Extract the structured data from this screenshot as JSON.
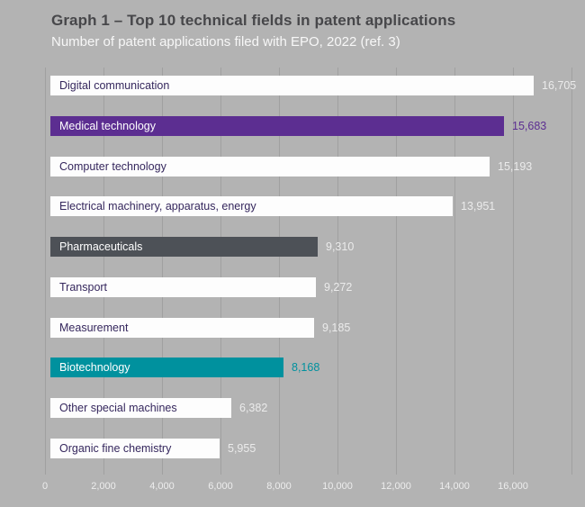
{
  "chart_data": {
    "type": "bar",
    "orientation": "horizontal",
    "title": "Graph 1 – Top 10 technical fields in patent applications",
    "subtitle": "Number of patent applications filed with EPO, 2022 (ref. 3)",
    "categories": [
      "Digital communication",
      "Medical technology",
      "Computer technology",
      "Electrical machinery, apparatus, energy",
      "Pharmaceuticals",
      "Transport",
      "Measurement",
      "Biotechnology",
      "Other special machines",
      "Organic fine chemistry"
    ],
    "values": [
      16705,
      15683,
      15193,
      13951,
      9310,
      9272,
      9185,
      8168,
      6382,
      5955
    ],
    "bars": [
      {
        "label": "Digital communication",
        "value": 16705,
        "value_label": "16,705",
        "bar_color": "#fdfdfd",
        "label_color": "#35275d",
        "value_color": "#ebebeb"
      },
      {
        "label": "Medical technology",
        "value": 15683,
        "value_label": "15,683",
        "bar_color": "#5c2e91",
        "label_color": "#ffffff",
        "value_color": "#5c2e91"
      },
      {
        "label": "Computer technology",
        "value": 15193,
        "value_label": "15,193",
        "bar_color": "#fdfdfd",
        "label_color": "#35275d",
        "value_color": "#ebebeb"
      },
      {
        "label": "Electrical machinery, apparatus, energy",
        "value": 13951,
        "value_label": "13,951",
        "bar_color": "#fdfdfd",
        "label_color": "#35275d",
        "value_color": "#ebebeb"
      },
      {
        "label": "Pharmaceuticals",
        "value": 9310,
        "value_label": "9,310",
        "bar_color": "#4d5157",
        "label_color": "#ffffff",
        "value_color": "#ebebeb"
      },
      {
        "label": "Transport",
        "value": 9272,
        "value_label": "9,272",
        "bar_color": "#fdfdfd",
        "label_color": "#35275d",
        "value_color": "#ebebeb"
      },
      {
        "label": "Measurement",
        "value": 9185,
        "value_label": "9,185",
        "bar_color": "#fdfdfd",
        "label_color": "#35275d",
        "value_color": "#ebebeb"
      },
      {
        "label": "Biotechnology",
        "value": 8168,
        "value_label": "8,168",
        "bar_color": "#00919e",
        "label_color": "#ffffff",
        "value_color": "#00919e"
      },
      {
        "label": "Other special machines",
        "value": 6382,
        "value_label": "6,382",
        "bar_color": "#fdfdfd",
        "label_color": "#35275d",
        "value_color": "#ebebeb"
      },
      {
        "label": "Organic fine chemistry",
        "value": 5955,
        "value_label": "5,955",
        "bar_color": "#fdfdfd",
        "label_color": "#35275d",
        "value_color": "#ebebeb"
      }
    ],
    "x_axis": {
      "tick_labels": [
        "0",
        "2,000",
        "4,000",
        "6,000",
        "8,000",
        "10,000",
        "12,000",
        "14,000",
        "16,000"
      ],
      "tick_values": [
        0,
        2000,
        4000,
        6000,
        8000,
        10000,
        12000,
        14000,
        16000
      ],
      "gridline_step": 2000,
      "gridline_max": 18000,
      "range": [
        0,
        18000
      ]
    },
    "grid": "vertical-gridlines-on",
    "legend": "none",
    "colors": {
      "background": "#b3b3b3",
      "gridline": "#a0a0a0",
      "title_text": "#47474a",
      "subtitle_text": "#f7f7f7",
      "axis_text": "#ededed"
    }
  }
}
